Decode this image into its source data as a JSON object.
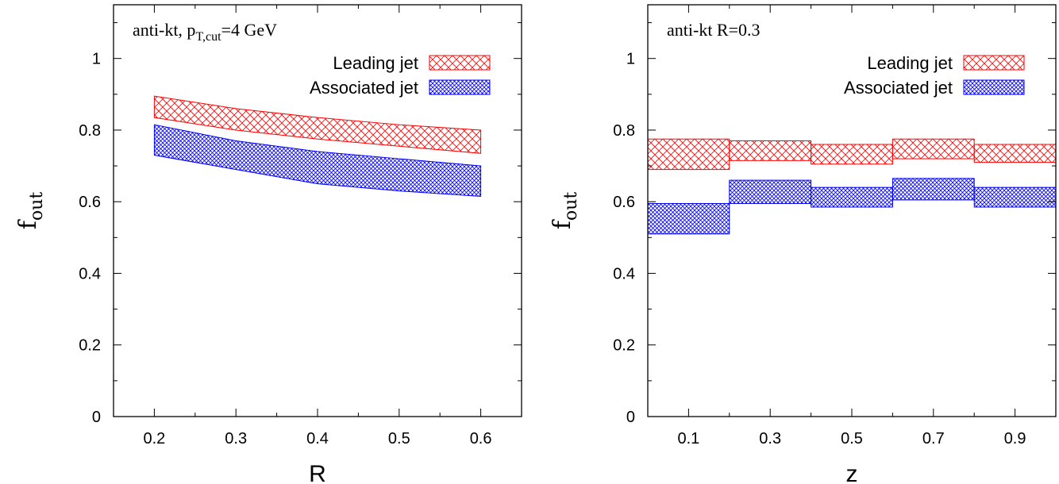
{
  "chart_data": [
    {
      "type": "area",
      "panel": "left",
      "xlabel": "R",
      "ylabel": "f",
      "ylabel_sub": "out",
      "xlim": [
        0.15,
        0.65
      ],
      "ylim": [
        0,
        1.15
      ],
      "x_ticks": [
        0.2,
        0.3,
        0.4,
        0.5,
        0.6
      ],
      "x_tick_labels": [
        "0.2",
        "0.3",
        "0.4",
        "0.5",
        "0.6"
      ],
      "y_ticks": [
        0,
        0.2,
        0.4,
        0.6,
        0.8,
        1.0
      ],
      "y_tick_labels": [
        "0",
        "0.2",
        "0.4",
        "0.6",
        "0.8",
        "1"
      ],
      "annotation": {
        "prefix": "anti-kt, p",
        "sub": "T,cut",
        "suffix": "=4 GeV"
      },
      "legend_position": "top-right",
      "grid": false,
      "series": [
        {
          "name": "Leading jet",
          "color": "#ff0000",
          "pattern": "crosshatch",
          "x": [
            0.2,
            0.3,
            0.4,
            0.5,
            0.6
          ],
          "upper": [
            0.895,
            0.86,
            0.835,
            0.815,
            0.8
          ],
          "lower": [
            0.835,
            0.8,
            0.775,
            0.755,
            0.735
          ]
        },
        {
          "name": "Associated jet",
          "color": "#0000ff",
          "pattern": "dense-crosshatch",
          "x": [
            0.2,
            0.3,
            0.4,
            0.5,
            0.6
          ],
          "upper": [
            0.815,
            0.77,
            0.74,
            0.72,
            0.7
          ],
          "lower": [
            0.73,
            0.69,
            0.65,
            0.63,
            0.615
          ]
        }
      ]
    },
    {
      "type": "area",
      "panel": "right",
      "xlabel": "z",
      "ylabel": "f",
      "ylabel_sub": "out",
      "xlim": [
        0,
        1
      ],
      "ylim": [
        0,
        1.15
      ],
      "x_ticks": [
        0.1,
        0.3,
        0.5,
        0.7,
        0.9
      ],
      "x_tick_labels": [
        "0.1",
        "0.3",
        "0.5",
        "0.7",
        "0.9"
      ],
      "y_ticks": [
        0,
        0.2,
        0.4,
        0.6,
        0.8,
        1.0
      ],
      "y_tick_labels": [
        "0",
        "0.2",
        "0.4",
        "0.6",
        "0.8",
        "1"
      ],
      "annotation": {
        "prefix": "anti-kt R=0.3",
        "sub": "",
        "suffix": ""
      },
      "legend_position": "top-right",
      "grid": false,
      "series": [
        {
          "name": "Leading jet",
          "color": "#ff0000",
          "pattern": "crosshatch",
          "bins": [
            [
              0.0,
              0.2
            ],
            [
              0.2,
              0.4
            ],
            [
              0.4,
              0.6
            ],
            [
              0.6,
              0.8
            ],
            [
              0.8,
              1.0
            ]
          ],
          "upper": [
            0.775,
            0.77,
            0.76,
            0.775,
            0.76
          ],
          "lower": [
            0.69,
            0.715,
            0.705,
            0.72,
            0.71
          ]
        },
        {
          "name": "Associated jet",
          "color": "#0000ff",
          "pattern": "dense-crosshatch",
          "bins": [
            [
              0.0,
              0.2
            ],
            [
              0.2,
              0.4
            ],
            [
              0.4,
              0.6
            ],
            [
              0.6,
              0.8
            ],
            [
              0.8,
              1.0
            ]
          ],
          "upper": [
            0.595,
            0.66,
            0.64,
            0.665,
            0.64
          ],
          "lower": [
            0.51,
            0.595,
            0.585,
            0.605,
            0.585
          ]
        }
      ]
    }
  ]
}
